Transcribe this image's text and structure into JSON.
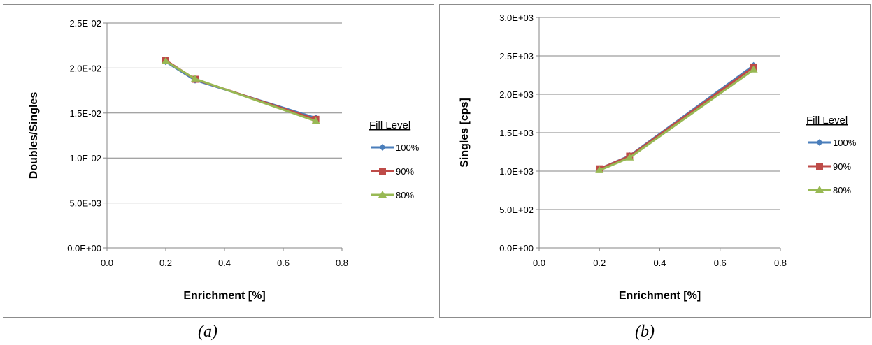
{
  "chart_data": [
    {
      "type": "line",
      "xlabel": "Enrichment [%]",
      "ylabel": "Doubles/Singles",
      "xlim": [
        0,
        0.8
      ],
      "ylim": [
        0,
        0.025
      ],
      "x_ticks": [
        "0.0",
        "0.2",
        "0.4",
        "0.6",
        "0.8"
      ],
      "y_ticks": [
        "0.0E+00",
        "5.0E-03",
        "1.0E-02",
        "1.5E-02",
        "2.0E-02",
        "2.5E-02"
      ],
      "grid": "horizontal",
      "legend_title": "Fill Level",
      "legend_position": "right",
      "series": [
        {
          "name": "100%",
          "color": "#4a7ebb",
          "marker": "diamond",
          "x": [
            0.2,
            0.3,
            0.711
          ],
          "y": [
            0.0207,
            0.01865,
            0.01445
          ]
        },
        {
          "name": "90%",
          "color": "#be4b48",
          "marker": "square",
          "x": [
            0.2,
            0.3,
            0.711
          ],
          "y": [
            0.02085,
            0.01875,
            0.0143
          ]
        },
        {
          "name": "80%",
          "color": "#98b954",
          "marker": "triangle",
          "x": [
            0.2,
            0.3,
            0.711
          ],
          "y": [
            0.02075,
            0.0188,
            0.0141
          ]
        }
      ],
      "caption": "(a)"
    },
    {
      "type": "line",
      "xlabel": "Enrichment [%]",
      "ylabel": "Singles [cps]",
      "xlim": [
        0,
        0.8
      ],
      "ylim": [
        0,
        3000
      ],
      "x_ticks": [
        "0.0",
        "0.2",
        "0.4",
        "0.6",
        "0.8"
      ],
      "y_ticks": [
        "0.0E+00",
        "5.0E+02",
        "1.0E+03",
        "1.5E+03",
        "2.0E+03",
        "2.5E+03",
        "3.0E+03"
      ],
      "grid": "horizontal",
      "legend_title": "Fill Level",
      "legend_position": "right",
      "series": [
        {
          "name": "100%",
          "color": "#4a7ebb",
          "marker": "diamond",
          "x": [
            0.2,
            0.3,
            0.711
          ],
          "y": [
            1030,
            1200,
            2375
          ]
        },
        {
          "name": "90%",
          "color": "#be4b48",
          "marker": "square",
          "x": [
            0.2,
            0.3,
            0.711
          ],
          "y": [
            1030,
            1195,
            2355
          ]
        },
        {
          "name": "80%",
          "color": "#98b954",
          "marker": "triangle",
          "x": [
            0.2,
            0.3,
            0.711
          ],
          "y": [
            1010,
            1175,
            2320
          ]
        }
      ],
      "caption": "(b)"
    }
  ]
}
